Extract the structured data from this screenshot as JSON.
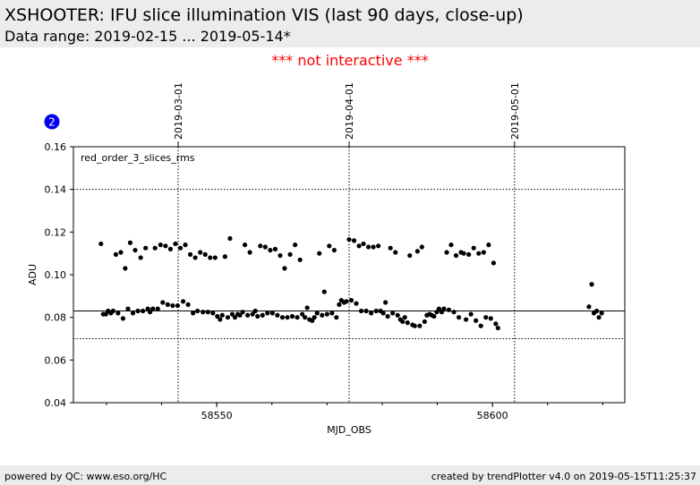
{
  "header": {
    "title": "XSHOOTER: IFU slice illumination VIS (last 90 days, close-up)",
    "subtitle": "Data range: 2019-02-15 ... 2019-05-14*"
  },
  "notice": "*** not interactive ***",
  "footer": {
    "left": "powered by QC: www.eso.org/HC",
    "right": "created by trendPlotter v4.0 on 2019-05-15T11:25:37"
  },
  "colors": {
    "header_bg": "#ececec",
    "notice": "#ff0000",
    "badge": "#0000ee",
    "points": "#000000"
  },
  "chart_data": {
    "type": "scatter",
    "badge": "2",
    "legend_label": "red_order_3_slices_rms",
    "xlabel": "MJD_OBS",
    "ylabel": "ADU",
    "xlim": [
      58524.0,
      58624.0
    ],
    "ylim": [
      0.04,
      0.16
    ],
    "xticks": [
      58550,
      58600
    ],
    "yticks": [
      0.04,
      0.06,
      0.08,
      0.1,
      0.12,
      0.14,
      0.16
    ],
    "ytick_labels": [
      "0.04",
      "0.06",
      "0.08",
      "0.10",
      "0.12",
      "0.14",
      "0.16"
    ],
    "reference_lines": {
      "median": 0.083,
      "lower": 0.07,
      "upper": 0.14
    },
    "date_markers": [
      {
        "label": "2019-03-01",
        "mjd": 58543.0
      },
      {
        "label": "2019-04-01",
        "mjd": 58574.0
      },
      {
        "label": "2019-05-01",
        "mjd": 58604.0
      }
    ],
    "series": [
      {
        "points": [
          [
            58529.0,
            0.1145
          ],
          [
            58529.4,
            0.0815
          ],
          [
            58529.9,
            0.0815
          ],
          [
            58530.3,
            0.083
          ],
          [
            58530.8,
            0.082
          ],
          [
            58531.2,
            0.083
          ],
          [
            58531.7,
            0.1095
          ],
          [
            58532.1,
            0.082
          ],
          [
            58532.6,
            0.1105
          ],
          [
            58533.0,
            0.0795
          ],
          [
            58533.4,
            0.103
          ],
          [
            58533.9,
            0.084
          ],
          [
            58534.3,
            0.115
          ],
          [
            58534.8,
            0.082
          ],
          [
            58535.2,
            0.1115
          ],
          [
            58535.7,
            0.083
          ],
          [
            58536.2,
            0.108
          ],
          [
            58536.6,
            0.083
          ],
          [
            58537.1,
            0.1125
          ],
          [
            58537.5,
            0.084
          ],
          [
            58537.9,
            0.0825
          ],
          [
            58538.4,
            0.084
          ],
          [
            58538.8,
            0.1125
          ],
          [
            58539.3,
            0.084
          ],
          [
            58539.8,
            0.114
          ],
          [
            58540.2,
            0.087
          ],
          [
            58540.7,
            0.1135
          ],
          [
            58541.1,
            0.086
          ],
          [
            58541.6,
            0.112
          ],
          [
            58542.0,
            0.0855
          ],
          [
            58542.5,
            0.1145
          ],
          [
            58542.9,
            0.0855
          ],
          [
            58543.4,
            0.1125
          ],
          [
            58543.9,
            0.0875
          ],
          [
            58544.3,
            0.114
          ],
          [
            58544.8,
            0.086
          ],
          [
            58545.2,
            0.1095
          ],
          [
            58545.7,
            0.082
          ],
          [
            58546.1,
            0.108
          ],
          [
            58546.5,
            0.083
          ],
          [
            58547.0,
            0.1105
          ],
          [
            58547.5,
            0.0825
          ],
          [
            58547.9,
            0.1095
          ],
          [
            58548.4,
            0.0825
          ],
          [
            58548.8,
            0.108
          ],
          [
            58549.3,
            0.082
          ],
          [
            58549.7,
            0.108
          ],
          [
            58550.1,
            0.0805
          ],
          [
            58550.6,
            0.079
          ],
          [
            58551.0,
            0.081
          ],
          [
            58551.5,
            0.1085
          ],
          [
            58552.0,
            0.08
          ],
          [
            58552.4,
            0.117
          ],
          [
            58552.8,
            0.0815
          ],
          [
            58553.3,
            0.08
          ],
          [
            58553.8,
            0.0815
          ],
          [
            58554.2,
            0.081
          ],
          [
            58554.7,
            0.0825
          ],
          [
            58555.1,
            0.114
          ],
          [
            58555.6,
            0.081
          ],
          [
            58556.0,
            0.1105
          ],
          [
            58556.5,
            0.0815
          ],
          [
            58557.0,
            0.083
          ],
          [
            58557.4,
            0.0805
          ],
          [
            58557.9,
            0.1135
          ],
          [
            58558.3,
            0.081
          ],
          [
            58558.8,
            0.113
          ],
          [
            58559.2,
            0.082
          ],
          [
            58559.7,
            0.1115
          ],
          [
            58560.1,
            0.082
          ],
          [
            58560.6,
            0.112
          ],
          [
            58561.0,
            0.081
          ],
          [
            58561.5,
            0.109
          ],
          [
            58561.9,
            0.08
          ],
          [
            58562.3,
            0.103
          ],
          [
            58562.8,
            0.08
          ],
          [
            58563.3,
            0.1095
          ],
          [
            58563.7,
            0.0805
          ],
          [
            58564.2,
            0.114
          ],
          [
            58564.6,
            0.08
          ],
          [
            58565.1,
            0.107
          ],
          [
            58565.5,
            0.0815
          ],
          [
            58566.0,
            0.08
          ],
          [
            58566.4,
            0.0845
          ],
          [
            58566.8,
            0.079
          ],
          [
            58567.3,
            0.0785
          ],
          [
            58567.7,
            0.08
          ],
          [
            58568.2,
            0.082
          ],
          [
            58568.6,
            0.11
          ],
          [
            58569.1,
            0.081
          ],
          [
            58569.5,
            0.092
          ],
          [
            58570.0,
            0.0815
          ],
          [
            58570.4,
            0.1135
          ],
          [
            58570.9,
            0.082
          ],
          [
            58571.3,
            0.1115
          ],
          [
            58571.7,
            0.08
          ],
          [
            58572.2,
            0.086
          ],
          [
            58572.6,
            0.088
          ],
          [
            58573.1,
            0.087
          ],
          [
            58573.5,
            0.0875
          ],
          [
            58574.0,
            0.1165
          ],
          [
            58574.4,
            0.088
          ],
          [
            58574.9,
            0.116
          ],
          [
            58575.3,
            0.0865
          ],
          [
            58575.8,
            0.1135
          ],
          [
            58576.2,
            0.083
          ],
          [
            58576.6,
            0.1145
          ],
          [
            58577.1,
            0.083
          ],
          [
            58577.5,
            0.113
          ],
          [
            58578.0,
            0.082
          ],
          [
            58578.4,
            0.113
          ],
          [
            58578.9,
            0.083
          ],
          [
            58579.3,
            0.1135
          ],
          [
            58579.7,
            0.083
          ],
          [
            58580.2,
            0.082
          ],
          [
            58580.6,
            0.087
          ],
          [
            58581.0,
            0.0805
          ],
          [
            58581.5,
            0.1125
          ],
          [
            58581.9,
            0.082
          ],
          [
            58582.4,
            0.1105
          ],
          [
            58582.8,
            0.081
          ],
          [
            58583.3,
            0.079
          ],
          [
            58583.7,
            0.078
          ],
          [
            58584.1,
            0.08
          ],
          [
            58584.6,
            0.0775
          ],
          [
            58585.0,
            0.109
          ],
          [
            58585.5,
            0.0765
          ],
          [
            58585.9,
            0.076
          ],
          [
            58586.4,
            0.111
          ],
          [
            58586.8,
            0.076
          ],
          [
            58587.2,
            0.113
          ],
          [
            58587.7,
            0.078
          ],
          [
            58588.1,
            0.081
          ],
          [
            58588.6,
            0.0815
          ],
          [
            58589.0,
            0.081
          ],
          [
            58589.4,
            0.0805
          ],
          [
            58589.9,
            0.0825
          ],
          [
            58590.3,
            0.084
          ],
          [
            58590.8,
            0.0825
          ],
          [
            58591.2,
            0.084
          ],
          [
            58591.7,
            0.1105
          ],
          [
            58592.1,
            0.0835
          ],
          [
            58592.5,
            0.114
          ],
          [
            58593.0,
            0.0825
          ],
          [
            58593.4,
            0.109
          ],
          [
            58593.9,
            0.08
          ],
          [
            58594.3,
            0.1105
          ],
          [
            58594.8,
            0.11
          ],
          [
            58595.2,
            0.079
          ],
          [
            58595.7,
            0.1095
          ],
          [
            58596.1,
            0.0815
          ],
          [
            58596.6,
            0.1125
          ],
          [
            58597.0,
            0.0785
          ],
          [
            58597.5,
            0.11
          ],
          [
            58597.9,
            0.076
          ],
          [
            58598.4,
            0.1105
          ],
          [
            58598.8,
            0.08
          ],
          [
            58599.3,
            0.114
          ],
          [
            58599.7,
            0.0795
          ],
          [
            58600.2,
            0.1055
          ],
          [
            58600.6,
            0.077
          ],
          [
            58601.0,
            0.075
          ],
          [
            58617.5,
            0.085
          ],
          [
            58618.0,
            0.0955
          ],
          [
            58618.4,
            0.082
          ],
          [
            58618.9,
            0.083
          ],
          [
            58619.3,
            0.08
          ],
          [
            58619.8,
            0.082
          ]
        ]
      }
    ]
  }
}
